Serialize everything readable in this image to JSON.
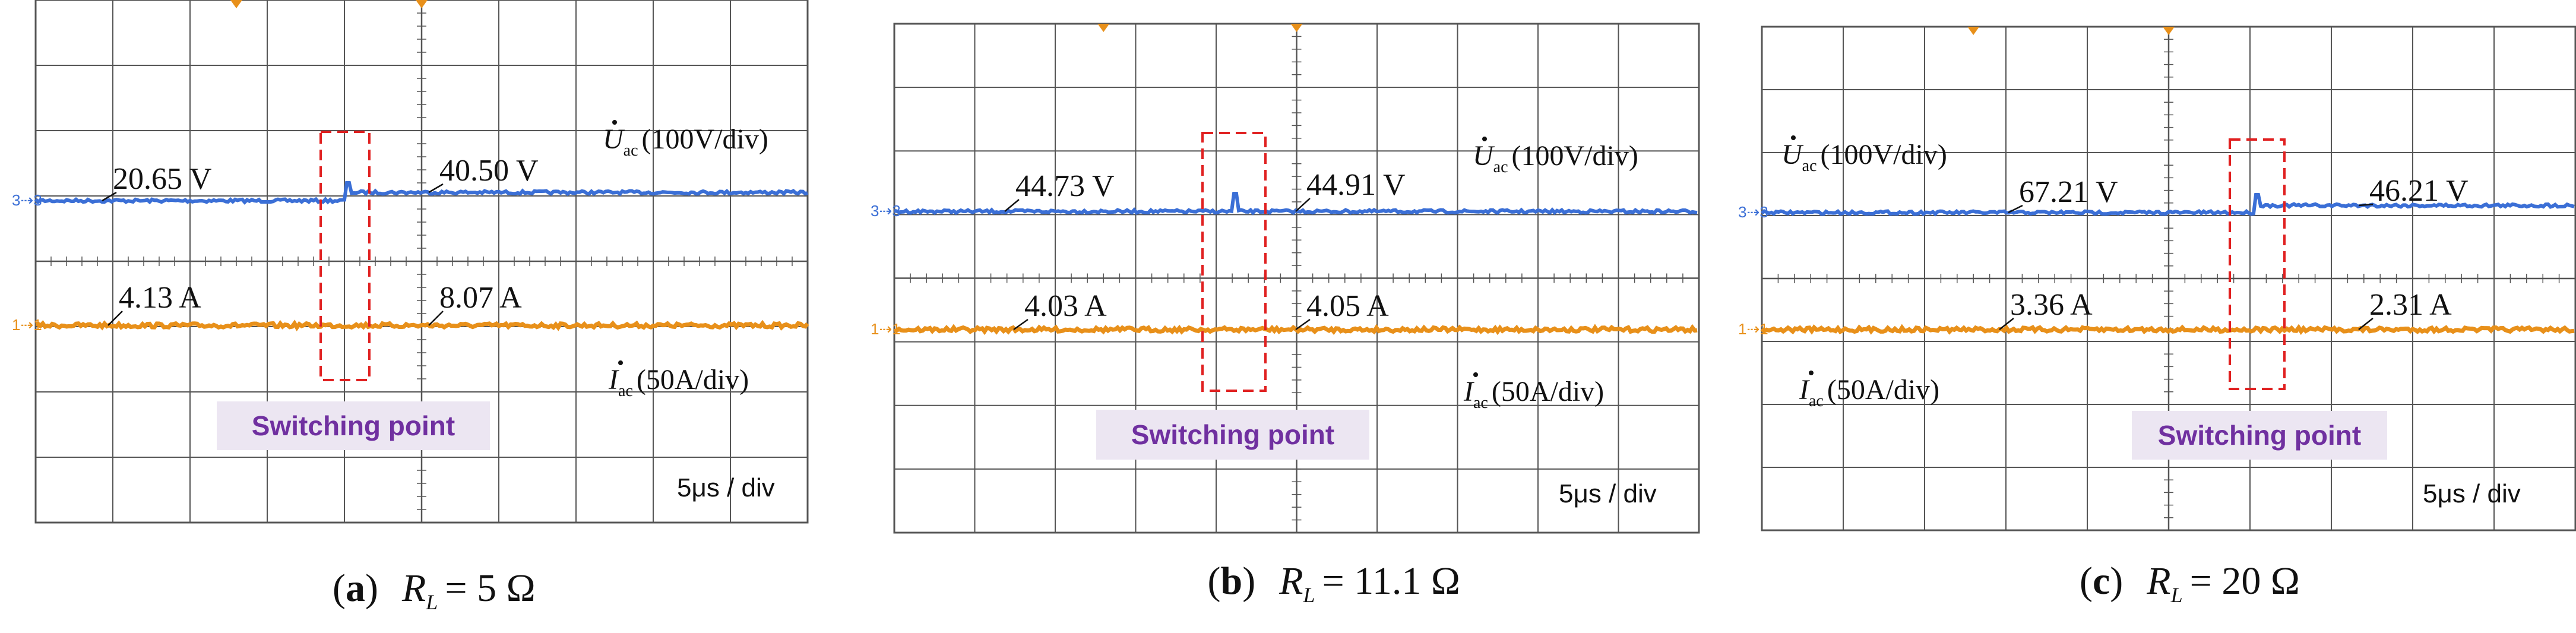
{
  "chart_data": [
    {
      "type": "line",
      "caption_letter": "a",
      "caption_load": "5 Ω",
      "time_scale": "5μs / div",
      "highlight_label": "Switching point",
      "voltage_trace": {
        "label_main": "U",
        "label_sub": "ac",
        "scale": "(100V/div)",
        "before": "20.65 V",
        "after": "40.50 V",
        "color": "#3b6fd6"
      },
      "current_trace": {
        "label_main": "I",
        "label_sub": "ac",
        "scale": "(50A/div)",
        "before": "4.13 A",
        "after": "8.07 A",
        "color": "#e8901a"
      }
    },
    {
      "type": "line",
      "caption_letter": "b",
      "caption_load": "11.1 Ω",
      "time_scale": "5μs / div",
      "highlight_label": "Switching point",
      "voltage_trace": {
        "label_main": "U",
        "label_sub": "ac",
        "scale": "(100V/div)",
        "before": "44.73 V",
        "after": "44.91 V",
        "color": "#3b6fd6"
      },
      "current_trace": {
        "label_main": "I",
        "label_sub": "ac",
        "scale": "(50A/div)",
        "before": "4.03 A",
        "after": "4.05 A",
        "color": "#e8901a"
      }
    },
    {
      "type": "line",
      "caption_letter": "c",
      "caption_load": "20 Ω",
      "time_scale": "5μs / div",
      "highlight_label": "Switching point",
      "voltage_trace": {
        "label_main": "U",
        "label_sub": "ac",
        "scale": "(100V/div)",
        "before": "67.21 V",
        "after": "46.21 V",
        "color": "#3b6fd6"
      },
      "current_trace": {
        "label_main": "I",
        "label_sub": "ac",
        "scale": "(50A/div)",
        "before": "3.36 A",
        "after": "2.31 A",
        "color": "#e8901a"
      }
    }
  ],
  "caption_symbol": "R",
  "caption_subscript": "L",
  "colors": {
    "grid": "#555555",
    "highlight": "#e02020",
    "label_bg": "#ece6f2"
  }
}
